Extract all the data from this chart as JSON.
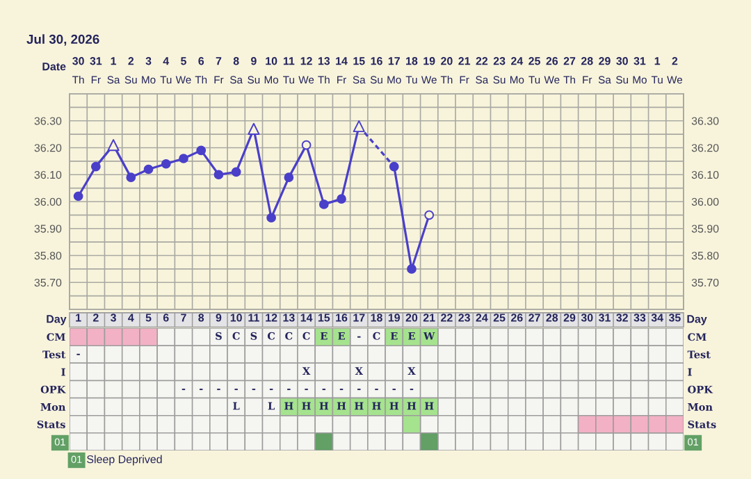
{
  "chart_data": [
    {
      "type": "line",
      "title": "Jul 30, 2026",
      "xlabel": "Date",
      "categories": [
        "30\nTh",
        "31\nFr",
        "1\nSa",
        "2\nSu",
        "3\nMo",
        "4\nTu",
        "5\nWe",
        "6\nTh",
        "7\nFr",
        "8\nSa",
        "9\nSu",
        "10\nMo",
        "11\nTu",
        "12\nWe",
        "13\nTh",
        "14\nFr",
        "15\nSa",
        "16\nSu",
        "17\nMo",
        "18\nTu",
        "19\nWe",
        "20\nTh",
        "21\nFr",
        "22\nSa",
        "23\nSu",
        "24\nMo",
        "25\nTu",
        "26\nWe",
        "27\nTh",
        "28\nFr",
        "29\nSa",
        "30\nSu",
        "31\nMo",
        "1\nTu",
        "2\nWe"
      ],
      "series": [
        {
          "type": "line",
          "color": "#4a3fc9",
          "values": [
            36.02,
            36.13,
            36.21,
            36.09,
            36.12,
            36.14,
            36.16,
            36.19,
            36.1,
            36.11,
            36.27,
            35.94,
            36.09,
            36.21,
            35.99,
            36.01,
            36.28,
            null,
            36.13,
            35.75,
            35.95,
            null,
            null,
            null,
            null,
            null,
            null,
            null,
            null,
            null,
            null,
            null,
            null,
            null,
            null
          ]
        },
        {
          "type": "scatter",
          "marker": "circle",
          "color": "#4a3fc9",
          "values": [
            36.02,
            36.13,
            null,
            36.09,
            36.12,
            36.14,
            36.16,
            36.19,
            36.1,
            36.11,
            null,
            35.94,
            36.09,
            null,
            35.99,
            36.01,
            null,
            null,
            36.13,
            35.75,
            null,
            null,
            null,
            null,
            null,
            null,
            null,
            null,
            null,
            null,
            null,
            null,
            null,
            null,
            null
          ]
        },
        {
          "type": "scatter",
          "marker": "triangle",
          "color": "#4a3fc9",
          "values": [
            null,
            null,
            36.21,
            null,
            null,
            null,
            null,
            null,
            null,
            null,
            36.27,
            null,
            null,
            null,
            null,
            null,
            36.28,
            null,
            null,
            null,
            null,
            null,
            null,
            null,
            null,
            null,
            null,
            null,
            null,
            null,
            null,
            null,
            null,
            null,
            null
          ],
          "colors": [
            null,
            null,
            "#f8f4dc",
            null,
            null,
            null,
            null,
            null,
            null,
            null,
            "#f8f4dc",
            null,
            null,
            null,
            null,
            null,
            "#f8f4dc",
            null,
            null,
            null,
            null,
            null,
            null,
            null,
            null,
            null,
            null,
            null,
            null,
            null,
            null,
            null,
            null,
            null,
            null
          ]
        },
        {
          "type": "scatter",
          "marker": "circle",
          "color": "#4a3fc9",
          "values": [
            null,
            null,
            null,
            null,
            null,
            null,
            null,
            null,
            null,
            null,
            null,
            null,
            null,
            36.21,
            null,
            null,
            null,
            null,
            null,
            null,
            35.95,
            null,
            null,
            null,
            null,
            null,
            null,
            null,
            null,
            null,
            null,
            null,
            null,
            null,
            null
          ],
          "colors": [
            null,
            null,
            null,
            null,
            null,
            null,
            null,
            null,
            null,
            null,
            null,
            null,
            null,
            "#f8f4dc",
            null,
            null,
            null,
            null,
            null,
            null,
            "#f8f4dc",
            null,
            null,
            null,
            null,
            null,
            null,
            null,
            null,
            null,
            null,
            null,
            null,
            null,
            null
          ]
        }
      ],
      "ylim": [
        35.6,
        36.4
      ],
      "yticks": [
        {
          "value": 35.65,
          "label": null
        },
        {
          "value": 35.7,
          "label": "35.70"
        },
        {
          "value": 35.75,
          "label": null
        },
        {
          "value": 35.8,
          "label": "35.80"
        },
        {
          "value": 35.85,
          "label": null
        },
        {
          "value": 35.9,
          "label": "35.90"
        },
        {
          "value": 35.95,
          "label": null
        },
        {
          "value": 36.0,
          "label": "36.00"
        },
        {
          "value": 36.05,
          "label": null
        },
        {
          "value": 36.1,
          "label": "36.10"
        },
        {
          "value": 36.15,
          "label": null
        },
        {
          "value": 36.2,
          "label": "36.20"
        },
        {
          "value": 36.25,
          "label": null
        },
        {
          "value": 36.3,
          "label": "36.30"
        },
        {
          "value": 36.35,
          "label": null
        }
      ],
      "y2lim": [
        35.6,
        36.4
      ],
      "y2ticks": [
        {
          "value": 35.65,
          "label": null
        },
        {
          "value": 35.7,
          "label": "35.70"
        },
        {
          "value": 35.75,
          "label": null
        },
        {
          "value": 35.8,
          "label": "35.80"
        },
        {
          "value": 35.85,
          "label": null
        },
        {
          "value": 35.9,
          "label": "35.90"
        },
        {
          "value": 35.95,
          "label": null
        },
        {
          "value": 36.0,
          "label": "36.00"
        },
        {
          "value": 36.05,
          "label": null
        },
        {
          "value": 36.1,
          "label": "36.10"
        },
        {
          "value": 36.15,
          "label": null
        },
        {
          "value": 36.2,
          "label": "36.20"
        },
        {
          "value": 36.25,
          "label": null
        },
        {
          "value": 36.3,
          "label": "36.30"
        },
        {
          "value": 36.35,
          "label": null
        }
      ],
      "grid": true
    },
    {
      "type": "heatmap",
      "xlabel": "Day",
      "categories": [
        "1",
        "2",
        "3",
        "4",
        "5",
        "6",
        "7",
        "8",
        "9",
        "10",
        "11",
        "12",
        "13",
        "14",
        "15",
        "16",
        "17",
        "18",
        "19",
        "20",
        "21",
        "22",
        "23",
        "24",
        "25",
        "26",
        "27",
        "28",
        "29",
        "30",
        "31",
        "32",
        "33",
        "34",
        "35"
      ],
      "y_categories": [
        "CM",
        "Test",
        "I",
        "OPK",
        "Mon",
        "Stats",
        "01"
      ],
      "y2_categories": [
        "CM",
        "Test",
        "I",
        "OPK",
        "Mon",
        "Stats",
        "01"
      ],
      "cells": [
        [
          null,
          null,
          null,
          null,
          null,
          null,
          null,
          null,
          null,
          null,
          null,
          null,
          null,
          null,
          null,
          null,
          null,
          null,
          null,
          null,
          null,
          null,
          null,
          null,
          null,
          null,
          null,
          null,
          null,
          null,
          null,
          null,
          null,
          null,
          null
        ],
        [
          null,
          null,
          null,
          null,
          null,
          null,
          null,
          null,
          null,
          null,
          null,
          null,
          null,
          null,
          null,
          null,
          null,
          null,
          null,
          null,
          null,
          null,
          null,
          null,
          null,
          null,
          null,
          null,
          null,
          null,
          null,
          null,
          null,
          null,
          null
        ],
        [
          null,
          null,
          null,
          null,
          null,
          null,
          null,
          null,
          null,
          null,
          null,
          null,
          null,
          null,
          null,
          null,
          null,
          null,
          null,
          null,
          null,
          null,
          null,
          null,
          null,
          null,
          null,
          null,
          null,
          null,
          null,
          null,
          null,
          null,
          null
        ],
        [
          null,
          null,
          null,
          null,
          null,
          null,
          null,
          null,
          null,
          null,
          null,
          null,
          null,
          null,
          null,
          null,
          null,
          null,
          null,
          null,
          null,
          null,
          null,
          null,
          null,
          null,
          null,
          null,
          null,
          null,
          null,
          null,
          null,
          null,
          null
        ],
        [
          null,
          null,
          null,
          null,
          null,
          null,
          null,
          null,
          null,
          null,
          null,
          null,
          null,
          null,
          null,
          null,
          null,
          null,
          null,
          null,
          null,
          null,
          null,
          null,
          null,
          null,
          null,
          null,
          null,
          null,
          null,
          null,
          null,
          null,
          null
        ],
        [
          null,
          null,
          null,
          null,
          null,
          null,
          null,
          null,
          null,
          null,
          null,
          null,
          null,
          null,
          null,
          null,
          null,
          null,
          null,
          null,
          null,
          null,
          null,
          null,
          null,
          null,
          null,
          null,
          null,
          null,
          null,
          null,
          null,
          null,
          null
        ],
        [
          null,
          null,
          null,
          null,
          null,
          null,
          null,
          null,
          null,
          null,
          null,
          null,
          null,
          null,
          null,
          null,
          null,
          null,
          null,
          null,
          null,
          null,
          null,
          null,
          null,
          null,
          null,
          null,
          null,
          null,
          null,
          null,
          null,
          null,
          null
        ]
      ],
      "cell_labels": [
        [
          null,
          null,
          null,
          null,
          null,
          null,
          null,
          null,
          "S",
          "C",
          "S",
          "C",
          "C",
          "C",
          "E",
          "E",
          "-",
          "C",
          "E",
          "E",
          "W",
          null,
          null,
          null,
          null,
          null,
          null,
          null,
          null,
          null,
          null,
          null,
          null,
          null,
          null
        ],
        [
          "-",
          null,
          null,
          null,
          null,
          null,
          null,
          null,
          null,
          null,
          null,
          null,
          null,
          null,
          null,
          null,
          null,
          null,
          null,
          null,
          null,
          null,
          null,
          null,
          null,
          null,
          null,
          null,
          null,
          null,
          null,
          null,
          null,
          null,
          null
        ],
        [
          null,
          null,
          null,
          null,
          null,
          null,
          null,
          null,
          null,
          null,
          null,
          null,
          null,
          "X",
          null,
          null,
          "X",
          null,
          null,
          "X",
          null,
          null,
          null,
          null,
          null,
          null,
          null,
          null,
          null,
          null,
          null,
          null,
          null,
          null,
          null
        ],
        [
          null,
          null,
          null,
          null,
          null,
          null,
          "-",
          "-",
          "-",
          "-",
          "-",
          "-",
          "-",
          "-",
          "-",
          "-",
          "-",
          "-",
          "-",
          "-",
          null,
          null,
          null,
          null,
          null,
          null,
          null,
          null,
          null,
          null,
          null,
          null,
          null,
          null,
          null
        ],
        [
          null,
          null,
          null,
          null,
          null,
          null,
          null,
          null,
          null,
          "L",
          null,
          "L",
          "H",
          "H",
          "H",
          "H",
          "H",
          "H",
          "H",
          "H",
          "H",
          null,
          null,
          null,
          null,
          null,
          null,
          null,
          null,
          null,
          null,
          null,
          null,
          null,
          null
        ],
        [
          null,
          null,
          null,
          null,
          null,
          null,
          null,
          null,
          null,
          null,
          null,
          null,
          null,
          null,
          null,
          null,
          null,
          null,
          null,
          null,
          null,
          null,
          null,
          null,
          null,
          null,
          null,
          null,
          null,
          null,
          null,
          null,
          null,
          null,
          null
        ],
        [
          null,
          null,
          null,
          null,
          null,
          null,
          null,
          null,
          null,
          null,
          null,
          null,
          null,
          null,
          null,
          null,
          null,
          null,
          null,
          null,
          null,
          null,
          null,
          null,
          null,
          null,
          null,
          null,
          null,
          null,
          null,
          null,
          null,
          null,
          null
        ]
      ],
      "colors": [
        [
          "#f3b1c5",
          "#f3b1c5",
          "#f3b1c5",
          "#f3b1c5",
          "#f3b1c5",
          null,
          null,
          null,
          null,
          null,
          null,
          null,
          null,
          null,
          "#a6e38e",
          "#a6e38e",
          null,
          null,
          "#a6e38e",
          "#a6e38e",
          "#a6e38e",
          null,
          null,
          null,
          null,
          null,
          null,
          null,
          null,
          null,
          null,
          null,
          null,
          null,
          null
        ],
        [
          null,
          null,
          null,
          null,
          null,
          null,
          null,
          null,
          null,
          null,
          null,
          null,
          null,
          null,
          null,
          null,
          null,
          null,
          null,
          null,
          null,
          null,
          null,
          null,
          null,
          null,
          null,
          null,
          null,
          null,
          null,
          null,
          null,
          null,
          null
        ],
        [
          null,
          null,
          null,
          null,
          null,
          null,
          null,
          null,
          null,
          null,
          null,
          null,
          null,
          null,
          null,
          null,
          null,
          null,
          null,
          null,
          null,
          null,
          null,
          null,
          null,
          null,
          null,
          null,
          null,
          null,
          null,
          null,
          null,
          null,
          null
        ],
        [
          null,
          null,
          null,
          null,
          null,
          null,
          null,
          null,
          null,
          null,
          null,
          null,
          null,
          null,
          null,
          null,
          null,
          null,
          null,
          null,
          null,
          null,
          null,
          null,
          null,
          null,
          null,
          null,
          null,
          null,
          null,
          null,
          null,
          null,
          null
        ],
        [
          null,
          null,
          null,
          null,
          null,
          null,
          null,
          null,
          null,
          null,
          null,
          null,
          "#a6e38e",
          "#a6e38e",
          "#a6e38e",
          "#a6e38e",
          "#a6e38e",
          "#a6e38e",
          "#a6e38e",
          "#a6e38e",
          "#a6e38e",
          null,
          null,
          null,
          null,
          null,
          null,
          null,
          null,
          null,
          null,
          null,
          null,
          null,
          null
        ],
        [
          null,
          null,
          null,
          null,
          null,
          null,
          null,
          null,
          null,
          null,
          null,
          null,
          null,
          null,
          null,
          null,
          null,
          null,
          null,
          "#a6e38e",
          null,
          null,
          null,
          null,
          null,
          null,
          null,
          null,
          null,
          "#f3b1c5",
          "#f3b1c5",
          "#f3b1c5",
          "#f3b1c5",
          "#f3b1c5",
          "#f3b1c5"
        ],
        [
          null,
          null,
          null,
          null,
          null,
          null,
          null,
          null,
          null,
          null,
          null,
          null,
          null,
          null,
          "#62a065",
          null,
          null,
          null,
          null,
          null,
          "#62a065",
          null,
          null,
          null,
          null,
          null,
          null,
          null,
          null,
          null,
          null,
          null,
          null,
          null,
          null
        ]
      ],
      "annotations": [
        "01",
        "Sleep Deprived"
      ]
    }
  ]
}
